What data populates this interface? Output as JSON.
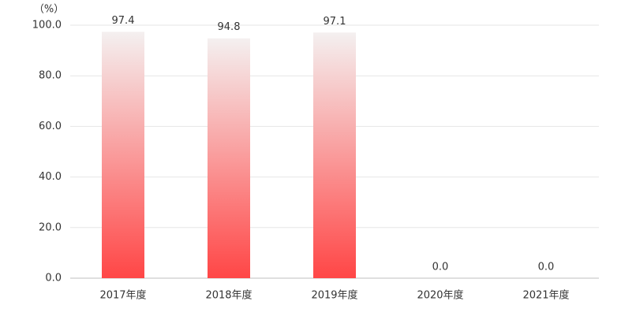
{
  "chart_data": {
    "type": "bar",
    "unit": "（%）",
    "categories": [
      "2017年度",
      "2018年度",
      "2019年度",
      "2020年度",
      "2021年度"
    ],
    "values": [
      97.4,
      94.8,
      97.1,
      0,
      0
    ],
    "value_labels": [
      "97.4",
      "94.8",
      "97.1",
      "0.0",
      "0.0"
    ],
    "color": "#ff4646",
    "ylim": [
      0,
      100
    ],
    "yticks": [
      {
        "value": 0,
        "label": "0.0"
      },
      {
        "value": 20,
        "label": "20.0"
      },
      {
        "value": 40,
        "label": "40.0"
      },
      {
        "value": 60,
        "label": "60.0"
      },
      {
        "value": 80,
        "label": "80.0"
      },
      {
        "value": 100,
        "label": "100.0"
      }
    ],
    "grid": true
  }
}
